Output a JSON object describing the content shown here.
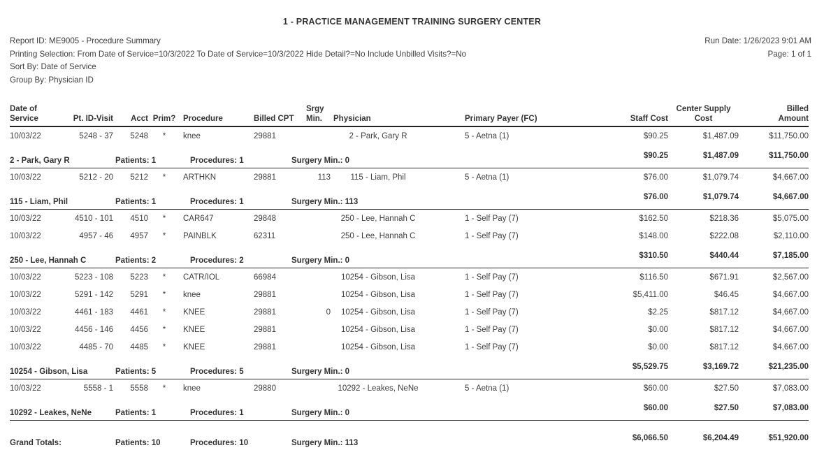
{
  "title": "1 - PRACTICE MANAGEMENT TRAINING SURGERY CENTER",
  "meta": {
    "report_id": "Report ID: ME9005 - Procedure Summary",
    "printing_selection": "Printing Selection: From Date of Service=10/3/2022 To Date of Service=10/3/2022 Hide Detail?=No Include Unbilled Visits?=No",
    "sort_by": "Sort By: Date of Service",
    "group_by": "Group By: Physician ID",
    "run_date": "Run Date: 1/26/2023 9:01 AM",
    "page": "Page: 1 of 1"
  },
  "columns": {
    "date_line1": "Date of",
    "date_line2": "Service",
    "pt_id_visit": "Pt. ID-Visit",
    "acct": "Acct",
    "prim": "Prim?",
    "procedure": "Procedure",
    "billed_cpt": "Billed CPT",
    "srgy_line1": "Srgy",
    "srgy_line2": "Min.",
    "physician": "Physician",
    "primary_payer": "Primary Payer (FC)",
    "staff_cost": "Staff Cost",
    "supply_line1": "Center Supply",
    "supply_line2": "Cost",
    "billed_line1": "Billed",
    "billed_line2": "Amount"
  },
  "groups": [
    {
      "rows": [
        {
          "date": "10/03/22",
          "pt_id_visit": "5248 - 37",
          "acct": "5248",
          "prim": "*",
          "procedure": "knee",
          "billed_cpt": "29881",
          "srgy_min": "",
          "physician": "2 - Park, Gary R",
          "payer": "5 - Aetna (1)",
          "staff_cost": "$90.25",
          "supply_cost": "$1,487.09",
          "billed_amount": "$11,750.00"
        }
      ],
      "subtotal": {
        "label": "2 - Park, Gary R",
        "patients": "Patients: 1",
        "procedures": "Procedures: 1",
        "surgery_min": "Surgery Min.: 0",
        "staff_cost": "$90.25",
        "supply_cost": "$1,487.09",
        "billed_amount": "$11,750.00"
      }
    },
    {
      "rows": [
        {
          "date": "10/03/22",
          "pt_id_visit": "5212 - 20",
          "acct": "5212",
          "prim": "*",
          "procedure": "ARTHKN",
          "billed_cpt": "29881",
          "srgy_min": "113",
          "physician": "115 - Liam, Phil",
          "payer": "5 - Aetna (1)",
          "staff_cost": "$76.00",
          "supply_cost": "$1,079.74",
          "billed_amount": "$4,667.00"
        }
      ],
      "subtotal": {
        "label": "115 - Liam, Phil",
        "patients": "Patients: 1",
        "procedures": "Procedures: 1",
        "surgery_min": "Surgery Min.: 113",
        "staff_cost": "$76.00",
        "supply_cost": "$1,079.74",
        "billed_amount": "$4,667.00"
      }
    },
    {
      "rows": [
        {
          "date": "10/03/22",
          "pt_id_visit": "4510 - 101",
          "acct": "4510",
          "prim": "*",
          "procedure": "CAR647",
          "billed_cpt": "29848",
          "srgy_min": "",
          "physician": "250 - Lee, Hannah C",
          "payer": "1 - Self Pay (7)",
          "staff_cost": "$162.50",
          "supply_cost": "$218.36",
          "billed_amount": "$5,075.00"
        },
        {
          "date": "10/03/22",
          "pt_id_visit": "4957 - 46",
          "acct": "4957",
          "prim": "*",
          "procedure": "PAINBLK",
          "billed_cpt": "62311",
          "srgy_min": "",
          "physician": "250 - Lee, Hannah C",
          "payer": "1 - Self Pay (7)",
          "staff_cost": "$148.00",
          "supply_cost": "$222.08",
          "billed_amount": "$2,110.00"
        }
      ],
      "subtotal": {
        "label": "250 - Lee, Hannah C",
        "patients": "Patients: 2",
        "procedures": "Procedures: 2",
        "surgery_min": "Surgery Min.: 0",
        "staff_cost": "$310.50",
        "supply_cost": "$440.44",
        "billed_amount": "$7,185.00"
      }
    },
    {
      "rows": [
        {
          "date": "10/03/22",
          "pt_id_visit": "5223 - 108",
          "acct": "5223",
          "prim": "*",
          "procedure": "CATR/IOL",
          "billed_cpt": "66984",
          "srgy_min": "",
          "physician": "10254 - Gibson, Lisa",
          "payer": "1 - Self Pay (7)",
          "staff_cost": "$116.50",
          "supply_cost": "$671.91",
          "billed_amount": "$2,567.00"
        },
        {
          "date": "10/03/22",
          "pt_id_visit": "5291 - 142",
          "acct": "5291",
          "prim": "*",
          "procedure": "knee",
          "billed_cpt": "29881",
          "srgy_min": "",
          "physician": "10254 - Gibson, Lisa",
          "payer": "1 - Self Pay (7)",
          "staff_cost": "$5,411.00",
          "supply_cost": "$46.45",
          "billed_amount": "$4,667.00"
        },
        {
          "date": "10/03/22",
          "pt_id_visit": "4461 - 183",
          "acct": "4461",
          "prim": "*",
          "procedure": "KNEE",
          "billed_cpt": "29881",
          "srgy_min": "0",
          "physician": "10254 - Gibson, Lisa",
          "payer": "1 - Self Pay (7)",
          "staff_cost": "$2.25",
          "supply_cost": "$817.12",
          "billed_amount": "$4,667.00"
        },
        {
          "date": "10/03/22",
          "pt_id_visit": "4456 - 146",
          "acct": "4456",
          "prim": "*",
          "procedure": "KNEE",
          "billed_cpt": "29881",
          "srgy_min": "",
          "physician": "10254 - Gibson, Lisa",
          "payer": "1 - Self Pay (7)",
          "staff_cost": "$0.00",
          "supply_cost": "$817.12",
          "billed_amount": "$4,667.00"
        },
        {
          "date": "10/03/22",
          "pt_id_visit": "4485 - 70",
          "acct": "4485",
          "prim": "*",
          "procedure": "KNEE",
          "billed_cpt": "29881",
          "srgy_min": "",
          "physician": "10254 - Gibson, Lisa",
          "payer": "1 - Self Pay (7)",
          "staff_cost": "$0.00",
          "supply_cost": "$817.12",
          "billed_amount": "$4,667.00"
        }
      ],
      "subtotal": {
        "label": "10254 - Gibson, Lisa",
        "patients": "Patients: 5",
        "procedures": "Procedures: 5",
        "surgery_min": "Surgery Min.: 0",
        "staff_cost": "$5,529.75",
        "supply_cost": "$3,169.72",
        "billed_amount": "$21,235.00"
      }
    },
    {
      "rows": [
        {
          "date": "10/03/22",
          "pt_id_visit": "5558 - 1",
          "acct": "5558",
          "prim": "*",
          "procedure": "knee",
          "billed_cpt": "29880",
          "srgy_min": "",
          "physician": "10292 - Leakes, NeNe",
          "payer": "5 - Aetna (1)",
          "staff_cost": "$60.00",
          "supply_cost": "$27.50",
          "billed_amount": "$7,083.00"
        }
      ],
      "subtotal": {
        "label": "10292 - Leakes, NeNe",
        "patients": "Patients: 1",
        "procedures": "Procedures: 1",
        "surgery_min": "Surgery Min.: 0",
        "staff_cost": "$60.00",
        "supply_cost": "$27.50",
        "billed_amount": "$7,083.00"
      }
    }
  ],
  "grand_total": {
    "label": "Grand Totals:",
    "patients": "Patients: 10",
    "procedures": "Procedures: 10",
    "surgery_min": "Surgery Min.: 113",
    "staff_cost": "$6,066.50",
    "supply_cost": "$6,204.49",
    "billed_amount": "$51,920.00"
  }
}
